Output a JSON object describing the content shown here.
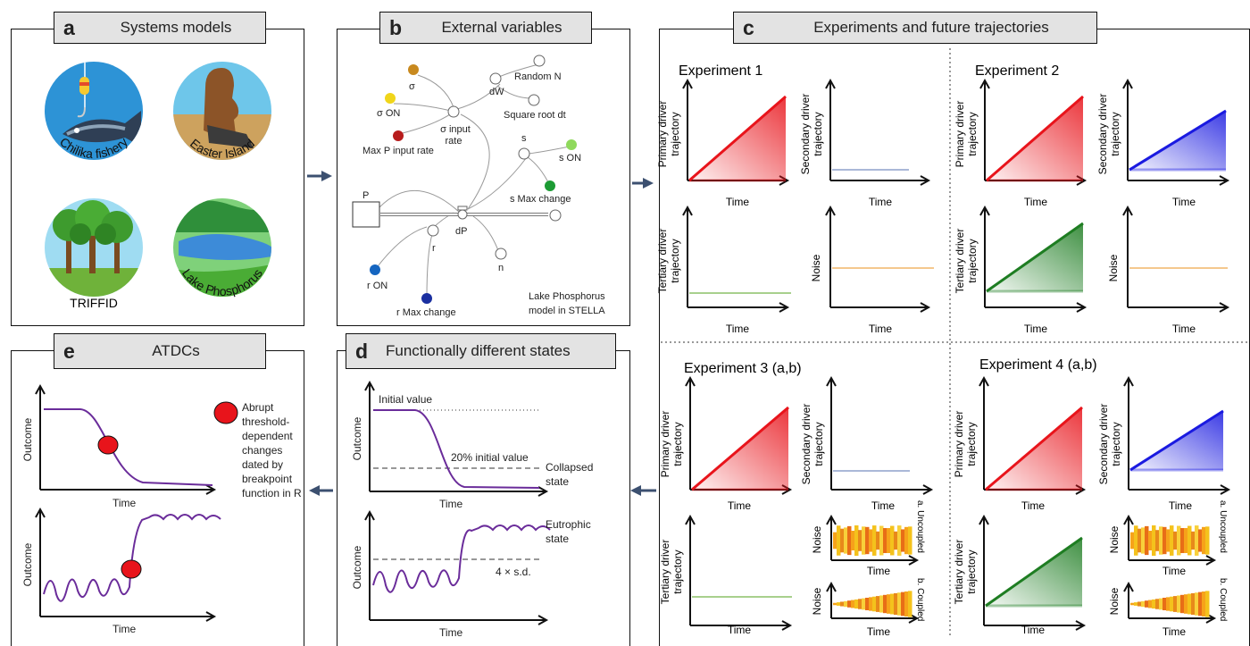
{
  "panels": {
    "a": {
      "letter": "a",
      "title": "Systems models",
      "items": [
        "Chilika fishery",
        "Easter Island",
        "TRIFFID",
        "Lake Phosphorus"
      ]
    },
    "b": {
      "letter": "b",
      "title": "External variables",
      "nodes": {
        "sigma": "σ",
        "sigma_on": "σ ON",
        "max_p": "Max P input rate",
        "sigma_input": "σ input",
        "sigma_input2": "rate",
        "dW": "dW",
        "random_n": "Random N",
        "sqrt_dt": "Square root dt",
        "s": "s",
        "s_on": "s ON",
        "s_max": "s Max change",
        "P": "P",
        "dP": "dP",
        "r": "r",
        "n": "n",
        "r_on": "r ON",
        "r_max": "r Max change"
      },
      "caption1": "Lake Phosphorus",
      "caption2": "model in STELLA"
    },
    "c": {
      "letter": "c",
      "title": "Experiments and future trajectories",
      "experiments": [
        "Experiment 1",
        "Experiment 2",
        "Experiment 3 (a,b)",
        "Experiment 4 (a,b)"
      ],
      "primary1": "Primary driver",
      "primary2": "trajectory",
      "secondary1": "Secondary driver",
      "secondary2": "trajectory",
      "tertiary1": "Tertiary driver",
      "tertiary2": "trajectory",
      "noise": "Noise",
      "time": "Time",
      "uncoupled": "a. Uncoupled",
      "coupled": "b. Coupled"
    },
    "d": {
      "letter": "d",
      "title": "Functionally different states",
      "initial": "Initial value",
      "pct20": "20% initial value",
      "collapsed1": "Collapsed",
      "collapsed2": "state",
      "eutrophic1": "Eutrophic",
      "eutrophic2": "state",
      "sd": "4 × s.d.",
      "outcome": "Outcome",
      "time": "Time"
    },
    "e": {
      "letter": "e",
      "title": "ATDCs",
      "legend": [
        "Abrupt",
        "threshold-",
        "dependent",
        "changes",
        "dated by",
        "breakpoint",
        "function in R"
      ],
      "outcome": "Outcome",
      "time": "Time"
    }
  },
  "colors": {
    "primary": "#e8141b",
    "secondary": "#1a1ae0",
    "tertiary": "#1e7d22",
    "outcome": "#6a2c9a",
    "breakpoint": "#e8141b",
    "header": "#e3e3e3",
    "arrow": "#3c5070",
    "flat_blue": "#aab8d8",
    "flat_green": "#a8d08d",
    "flat_orange": "#f5c88e"
  }
}
